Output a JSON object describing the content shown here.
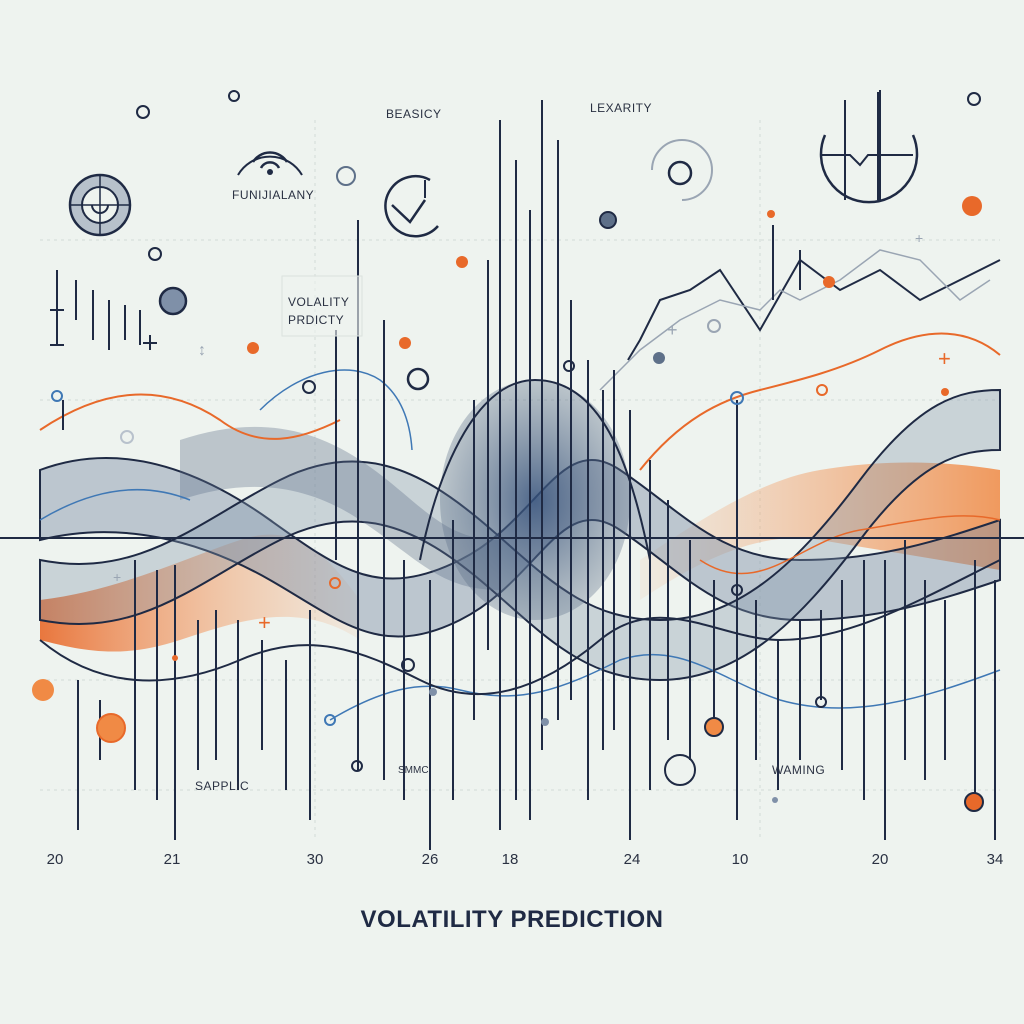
{
  "chart_data": {
    "type": "line",
    "title": "VOLATILITY PREDICTION",
    "x_tick_labels": [
      "20",
      "21",
      "30",
      "26",
      "18",
      "24",
      "10",
      "20",
      "34"
    ],
    "annotations": [
      "BEASICY",
      "LEXARITY",
      "FUNIJIALANY",
      "VOLALITY PRDICTY",
      "SAPPLIC",
      "SMMC",
      "WAMING"
    ],
    "grid": true,
    "legend": "none"
  },
  "colors": {
    "background": "#eef3ef",
    "navy": "#1f2a44",
    "slate": "#5e7089",
    "band": "#7f90a8",
    "orange": "#e8692a",
    "blue": "#3f78b5",
    "grid": "#d3dbd7"
  }
}
